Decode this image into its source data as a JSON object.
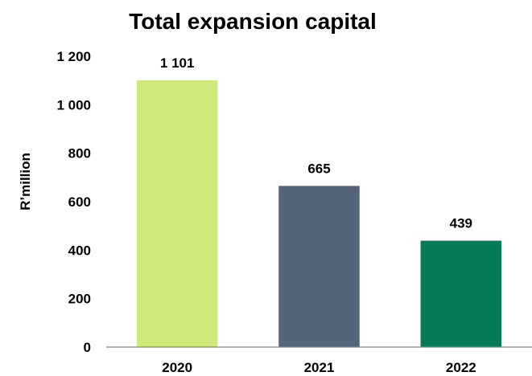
{
  "chart_data": {
    "type": "bar",
    "title": "Total expansion capital",
    "xlabel": "",
    "ylabel": "R’million",
    "categories": [
      "2020",
      "2021",
      "2022"
    ],
    "values": [
      1101,
      665,
      439
    ],
    "data_labels": [
      "1 101",
      "665",
      "439"
    ],
    "bar_colors": [
      "#cfe97a",
      "#546479",
      "#077a58"
    ],
    "ylim": [
      0,
      1200
    ],
    "yticks": [
      0,
      200,
      400,
      600,
      800,
      1000,
      1200
    ],
    "ytick_labels": [
      "0",
      "200",
      "400",
      "600",
      "800",
      "1 000",
      "1 200"
    ],
    "grid": false,
    "legend": "none"
  }
}
